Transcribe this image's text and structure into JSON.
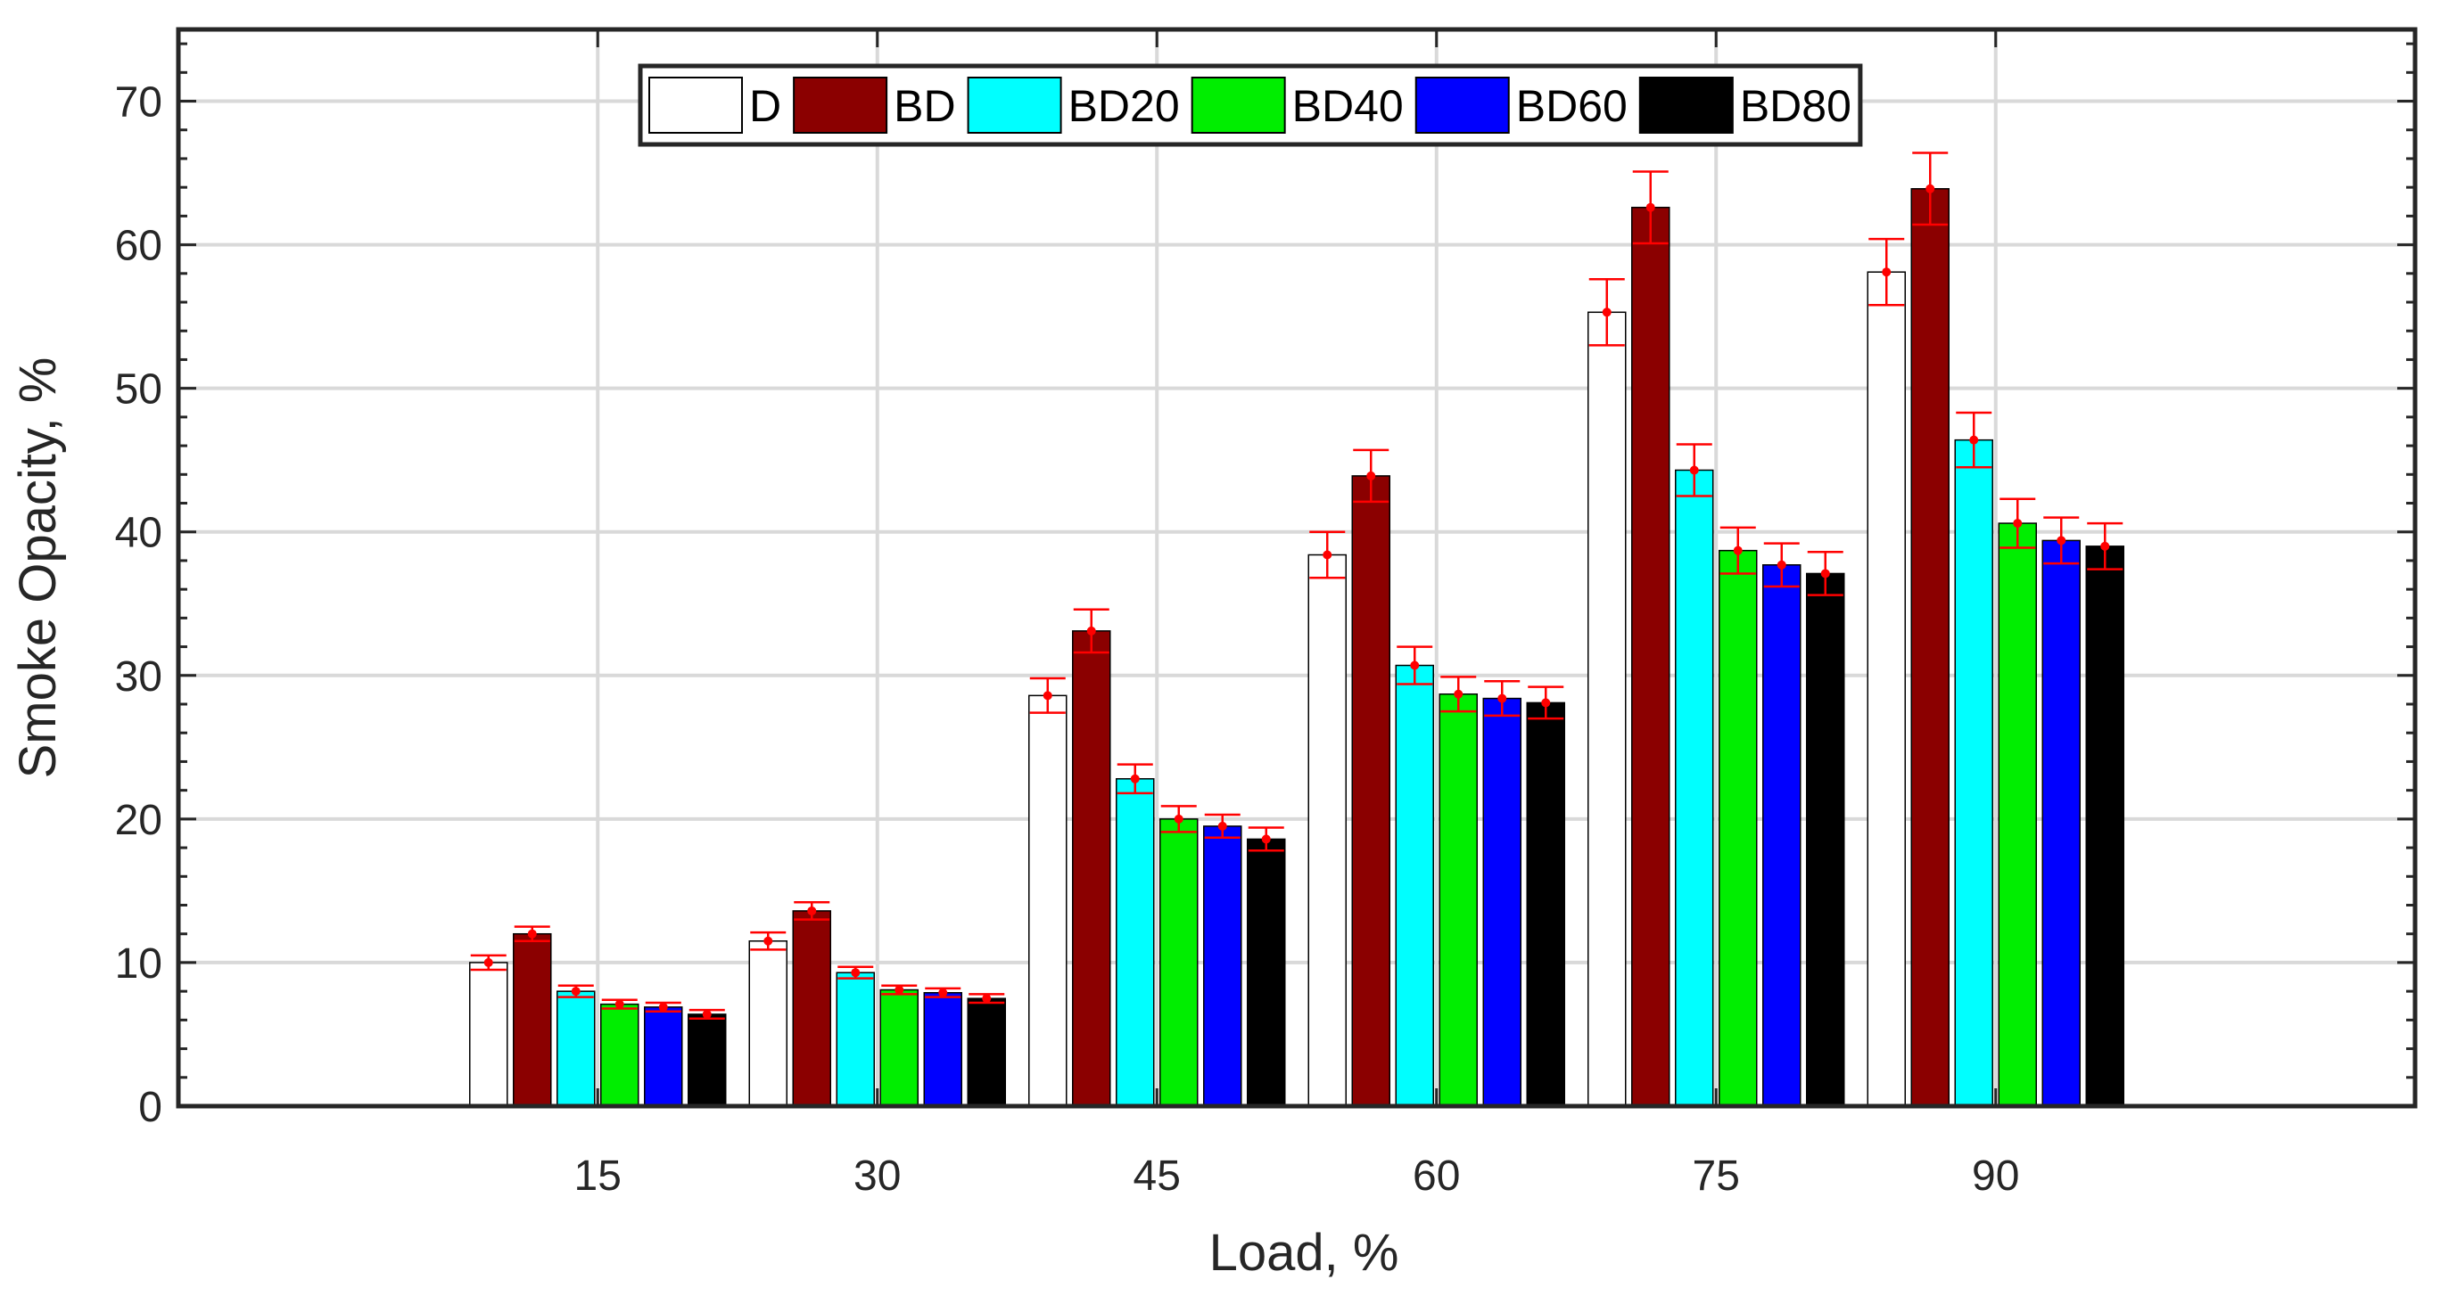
{
  "chart_data": {
    "type": "bar",
    "title": "",
    "xlabel": "Load, %",
    "ylabel": "Smoke Opacity, %",
    "categories": [
      "15",
      "30",
      "45",
      "60",
      "75",
      "90"
    ],
    "ylim": [
      0,
      75
    ],
    "yticks": [
      0,
      10,
      20,
      30,
      40,
      50,
      60,
      70
    ],
    "grid": true,
    "legend_position": "top-center",
    "series": [
      {
        "name": "D",
        "color": "#ffffff",
        "values": [
          10.0,
          11.5,
          28.6,
          38.4,
          55.3,
          58.1
        ],
        "errors": [
          0.5,
          0.6,
          1.2,
          1.6,
          2.3,
          2.3
        ]
      },
      {
        "name": "BD",
        "color": "#8b0000",
        "values": [
          12.0,
          13.6,
          33.1,
          43.9,
          62.6,
          63.9
        ],
        "errors": [
          0.5,
          0.6,
          1.5,
          1.8,
          2.5,
          2.5
        ]
      },
      {
        "name": "BD20",
        "color": "#00ffff",
        "values": [
          8.0,
          9.3,
          22.8,
          30.7,
          44.3,
          46.4
        ],
        "errors": [
          0.4,
          0.4,
          1.0,
          1.3,
          1.8,
          1.9
        ]
      },
      {
        "name": "BD40",
        "color": "#00ee00",
        "values": [
          7.1,
          8.1,
          20.0,
          28.7,
          38.7,
          40.6
        ],
        "errors": [
          0.3,
          0.3,
          0.9,
          1.2,
          1.6,
          1.7
        ]
      },
      {
        "name": "BD60",
        "color": "#0000ff",
        "values": [
          6.9,
          7.9,
          19.5,
          28.4,
          37.7,
          39.4
        ],
        "errors": [
          0.3,
          0.3,
          0.8,
          1.2,
          1.5,
          1.6
        ]
      },
      {
        "name": "BD80",
        "color": "#000000",
        "values": [
          6.4,
          7.5,
          18.6,
          28.1,
          37.1,
          39.0
        ],
        "errors": [
          0.3,
          0.3,
          0.8,
          1.1,
          1.5,
          1.6
        ]
      }
    ]
  }
}
